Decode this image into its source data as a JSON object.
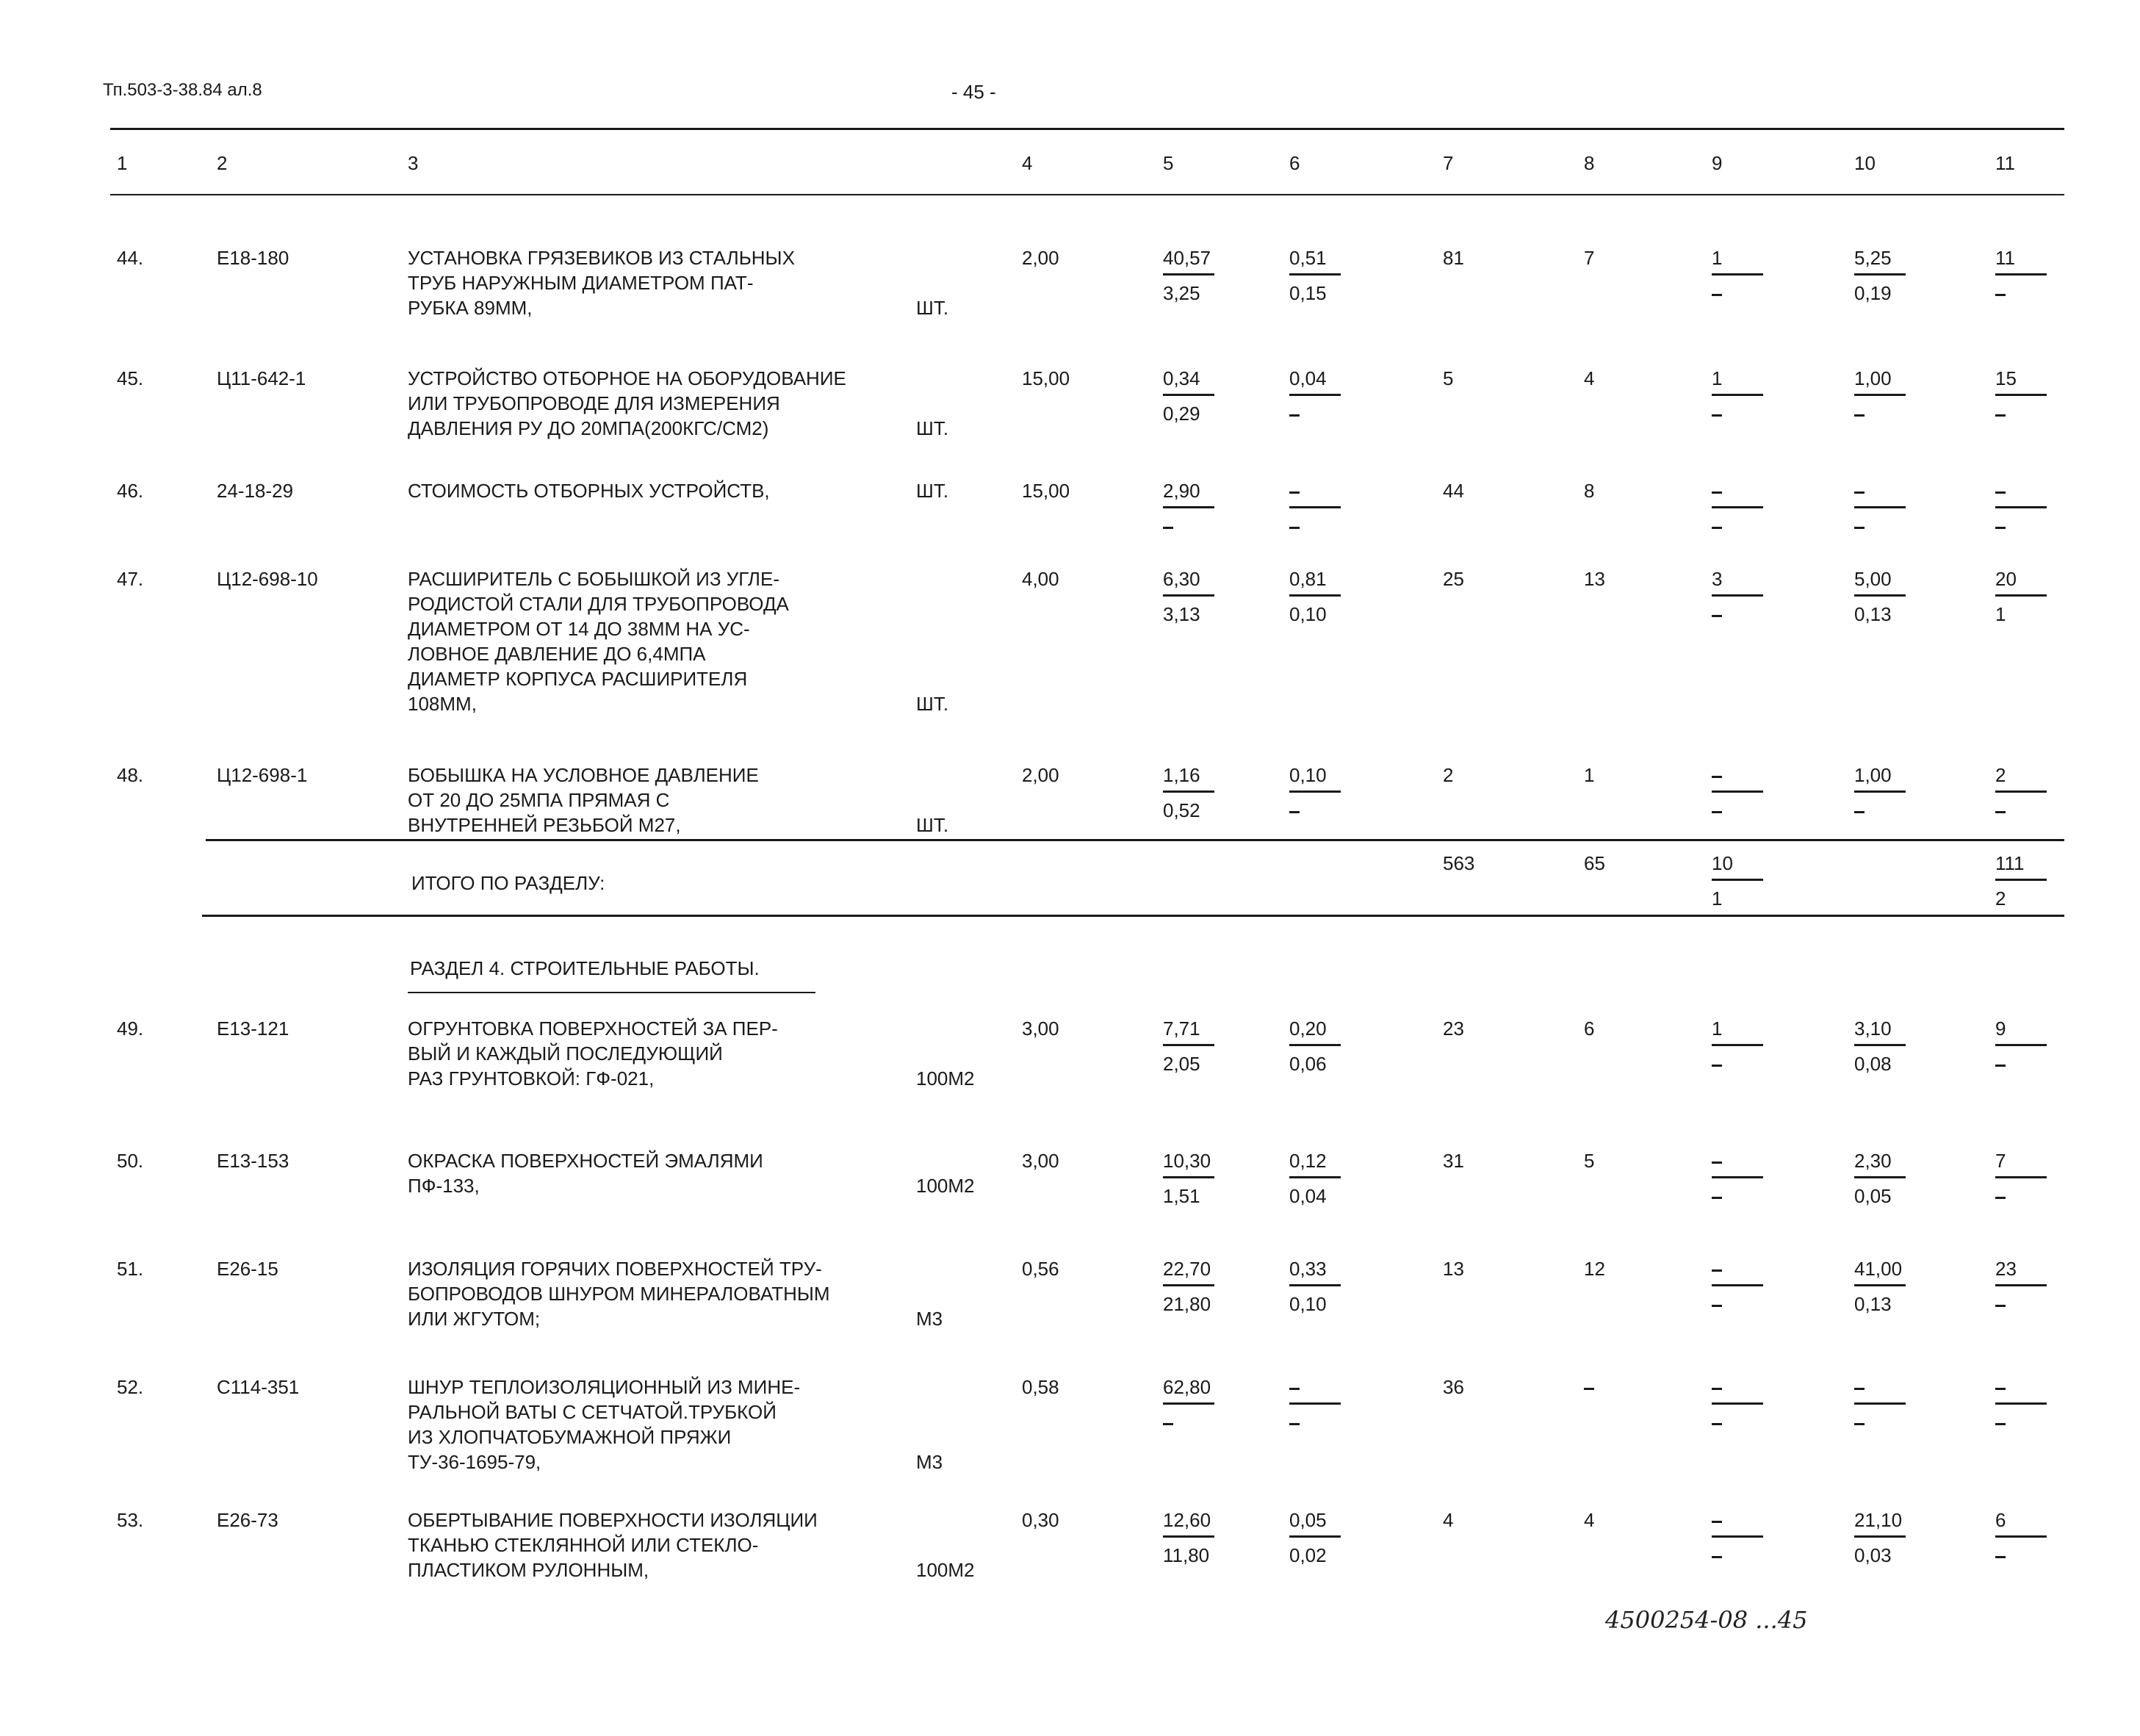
{
  "header": {
    "doc_code": "Тп.503-3-38.84 ал.8",
    "page_number": "- 45 -",
    "column_numbers": [
      "1",
      "2",
      "3",
      "4",
      "5",
      "6",
      "7",
      "8",
      "9",
      "10",
      "11"
    ]
  },
  "rows": [
    {
      "num": "44.",
      "code": "Е18-180",
      "desc": [
        "УСТАНОВКА ГРЯЗЕВИКОВ ИЗ СТАЛЬНЫХ",
        "ТРУБ НАРУЖНЫМ ДИАМЕТРОМ ПАТ-",
        "РУБКА 89ММ,"
      ],
      "unit": "ШТ.",
      "qty": "2,00",
      "c5": [
        "40,57",
        "3,25"
      ],
      "c6": [
        "0,51",
        "0,15"
      ],
      "c7": "81",
      "c8": "7",
      "c9": [
        "1",
        "–"
      ],
      "c10": [
        "5,25",
        "0,19"
      ],
      "c11": [
        "11",
        "–"
      ]
    },
    {
      "num": "45.",
      "code": "Ц11-642-1",
      "desc": [
        "УСТРОЙСТВО ОТБОРНОЕ НА ОБОРУДОВАНИЕ",
        "ИЛИ ТРУБОПРОВОДЕ ДЛЯ ИЗМЕРЕНИЯ",
        "ДАВЛЕНИЯ РУ ДО 20МПА(200КГС/СМ2)"
      ],
      "unit": "ШТ.",
      "qty": "15,00",
      "c5": [
        "0,34",
        "0,29"
      ],
      "c6": [
        "0,04",
        "–"
      ],
      "c7": "5",
      "c8": "4",
      "c9": [
        "1",
        "–"
      ],
      "c10": [
        "1,00",
        "–"
      ],
      "c11": [
        "15",
        "–"
      ]
    },
    {
      "num": "46.",
      "code": "24-18-29",
      "desc": [
        "СТОИМОСТЬ ОТБОРНЫХ УСТРОЙСТВ,"
      ],
      "unit": "ШТ.",
      "qty": "15,00",
      "c5": [
        "2,90",
        "–"
      ],
      "c6": [
        "–",
        "–"
      ],
      "c7": "44",
      "c8": "8",
      "c9": [
        "–",
        "–"
      ],
      "c10": [
        "–",
        "–"
      ],
      "c11": [
        "–",
        "–"
      ]
    },
    {
      "num": "47.",
      "code": "Ц12-698-10",
      "desc": [
        "РАСШИРИТЕЛЬ С БОБЫШКОЙ ИЗ УГЛЕ-",
        "РОДИСТОЙ СТАЛИ ДЛЯ ТРУБОПРОВОДА",
        "ДИАМЕТРОМ ОТ 14 ДО 38ММ НА УС-",
        "ЛОВНОЕ ДАВЛЕНИЕ ДО 6,4МПА",
        "ДИАМЕТР КОРПУСА РАСШИРИТЕЛЯ",
        "108ММ,"
      ],
      "unit": "ШТ.",
      "qty": "4,00",
      "c5": [
        "6,30",
        "3,13"
      ],
      "c6": [
        "0,81",
        "0,10"
      ],
      "c7": "25",
      "c8": "13",
      "c9": [
        "3",
        "–"
      ],
      "c10": [
        "5,00",
        "0,13"
      ],
      "c11": [
        "20",
        "1"
      ]
    },
    {
      "num": "48.",
      "code": "Ц12-698-1",
      "desc": [
        "БОБЫШКА НА УСЛОВНОЕ ДАВЛЕНИЕ",
        "ОТ 20 ДО 25МПА ПРЯМАЯ С",
        "ВНУТРЕННЕЙ РЕЗЬБОЙ М27,"
      ],
      "unit": "ШТ.",
      "qty": "2,00",
      "c5": [
        "1,16",
        "0,52"
      ],
      "c6": [
        "0,10",
        "–"
      ],
      "c7": "2",
      "c8": "1",
      "c9": [
        "–",
        "–"
      ],
      "c10": [
        "1,00",
        "–"
      ],
      "c11": [
        "2",
        "–"
      ]
    },
    {
      "num": "49.",
      "code": "Е13-121",
      "desc": [
        "ОГРУНТОВКА ПОВЕРХНОСТЕЙ ЗА ПЕР-",
        "ВЫЙ И КАЖДЫЙ ПОСЛЕДУЮЩИЙ",
        "РАЗ ГРУНТОВКОЙ: ГФ-021,"
      ],
      "unit": "100М2",
      "qty": "3,00",
      "c5": [
        "7,71",
        "2,05"
      ],
      "c6": [
        "0,20",
        "0,06"
      ],
      "c7": "23",
      "c8": "6",
      "c9": [
        "1",
        "–"
      ],
      "c10": [
        "3,10",
        "0,08"
      ],
      "c11": [
        "9",
        "–"
      ]
    },
    {
      "num": "50.",
      "code": "Е13-153",
      "desc": [
        "ОКРАСКА ПОВЕРХНОСТЕЙ ЭМАЛЯМИ",
        "ПФ-133,"
      ],
      "unit": "100М2",
      "qty": "3,00",
      "c5": [
        "10,30",
        "1,51"
      ],
      "c6": [
        "0,12",
        "0,04"
      ],
      "c7": "31",
      "c8": "5",
      "c9": [
        "–",
        "–"
      ],
      "c10": [
        "2,30",
        "0,05"
      ],
      "c11": [
        "7",
        "–"
      ]
    },
    {
      "num": "51.",
      "code": "Е26-15",
      "desc": [
        "ИЗОЛЯЦИЯ ГОРЯЧИХ ПОВЕРХНОСТЕЙ ТРУ-",
        "БОПРОВОДОВ  ШНУРОМ МИНЕРАЛОВАТНЫМ",
        "ИЛИ ЖГУТОМ;"
      ],
      "unit": "М3",
      "qty": "0,56",
      "c5": [
        "22,70",
        "21,80"
      ],
      "c6": [
        "0,33",
        "0,10"
      ],
      "c7": "13",
      "c8": "12",
      "c9": [
        "–",
        "–"
      ],
      "c10": [
        "41,00",
        "0,13"
      ],
      "c11": [
        "23",
        "–"
      ]
    },
    {
      "num": "52.",
      "code": "С114-351",
      "desc": [
        "ШНУР ТЕПЛОИЗОЛЯЦИОННЫЙ ИЗ МИНЕ-",
        "РАЛЬНОЙ ВАТЫ С СЕТЧАТОЙ.ТРУБКОЙ",
        "ИЗ ХЛОПЧАТОБУМАЖНОЙ ПРЯЖИ",
        "ТУ-36-1695-79,"
      ],
      "unit": "М3",
      "qty": "0,58",
      "c5": [
        "62,80",
        "–"
      ],
      "c6": [
        "–",
        "–"
      ],
      "c7": "36",
      "c8": "–",
      "c9": [
        "–",
        "–"
      ],
      "c10": [
        "–",
        "–"
      ],
      "c11": [
        "–",
        "–"
      ]
    },
    {
      "num": "53.",
      "code": "Е26-73",
      "desc": [
        "ОБЕРТЫВАНИЕ ПОВЕРХНОСТИ ИЗОЛЯЦИИ",
        "ТКАНЬЮ СТЕКЛЯННОЙ ИЛИ СТЕКЛО-",
        "ПЛАСТИКОМ РУЛОННЫМ,"
      ],
      "unit": "100М2",
      "qty": "0,30",
      "c5": [
        "12,60",
        "11,80"
      ],
      "c6": [
        "0,05",
        "0,02"
      ],
      "c7": "4",
      "c8": "4",
      "c9": [
        "–",
        "–"
      ],
      "c10": [
        "21,10",
        "0,03"
      ],
      "c11": [
        "6",
        "–"
      ]
    }
  ],
  "total": {
    "label": "ИТОГО ПО РАЗДЕЛУ:",
    "c7": "563",
    "c8": "65",
    "c9": [
      "10",
      "1"
    ],
    "c11": [
      "111",
      "2"
    ]
  },
  "section_heading": "РАЗДЕЛ 4. СТРОИТЕЛЬНЫЕ РАБОТЫ.",
  "handwritten_note": "4500254-08 ...45"
}
